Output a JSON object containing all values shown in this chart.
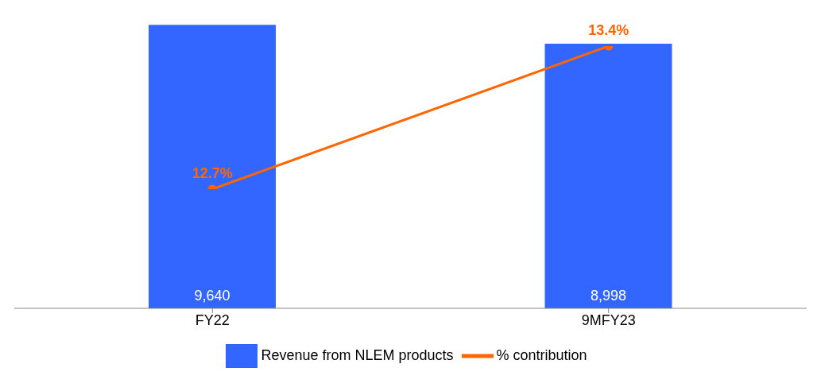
{
  "chart_data": {
    "type": "bar",
    "categories": [
      "FY22",
      "9MFY23"
    ],
    "series": [
      {
        "name": "Revenue from NLEM products",
        "color": "#3366ff",
        "values": [
          9640,
          8998
        ],
        "value_labels": [
          "9,640",
          "8,998"
        ]
      },
      {
        "name": "% contribution",
        "type": "line",
        "axis": "y2",
        "color": "#ff6600",
        "values": [
          12.7,
          13.4
        ],
        "value_labels": [
          "12.7%",
          "13.4%"
        ]
      }
    ],
    "data_labels": true,
    "legend": "bottom",
    "marker": "circle"
  }
}
